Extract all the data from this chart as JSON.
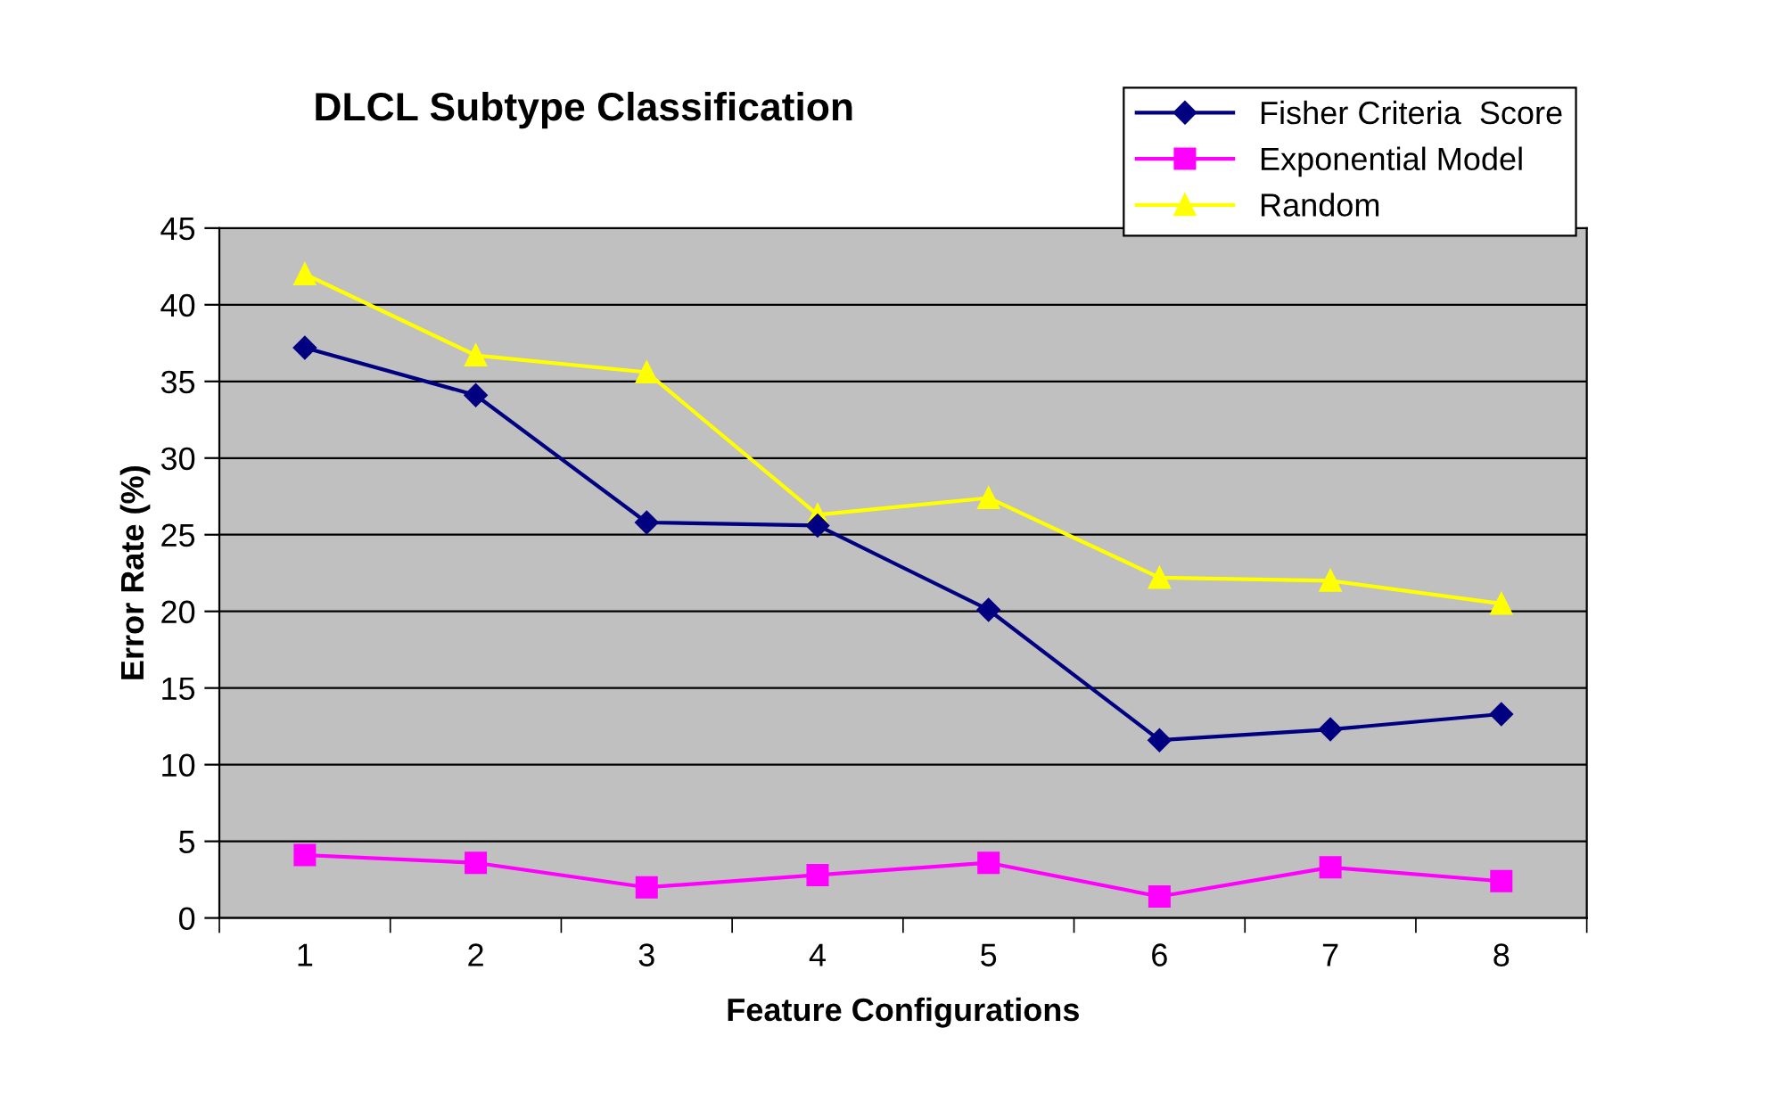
{
  "chart_data": {
    "type": "line",
    "title": "DLCL Subtype Classification",
    "xlabel": "Feature Configurations",
    "ylabel": "Error Rate (%)",
    "categories": [
      "1",
      "2",
      "3",
      "4",
      "5",
      "6",
      "7",
      "8"
    ],
    "series": [
      {
        "name": "Fisher Criteria  Score",
        "color": "#000080",
        "marker": "diamond",
        "values": [
          37.2,
          34.1,
          25.8,
          25.6,
          20.1,
          11.6,
          12.3,
          13.3
        ]
      },
      {
        "name": "Exponential Model",
        "color": "#ff00ff",
        "marker": "square",
        "values": [
          4.1,
          3.6,
          2.0,
          2.8,
          3.6,
          1.4,
          3.3,
          2.4
        ]
      },
      {
        "name": "Random",
        "color": "#ffff00",
        "marker": "triangle",
        "values": [
          42.0,
          36.7,
          35.6,
          26.3,
          27.4,
          22.2,
          22.0,
          20.5
        ]
      }
    ],
    "ylim": [
      0,
      45
    ],
    "yticks": [
      0,
      5,
      10,
      15,
      20,
      25,
      30,
      35,
      40,
      45
    ],
    "grid": "y",
    "legend": "top right"
  }
}
